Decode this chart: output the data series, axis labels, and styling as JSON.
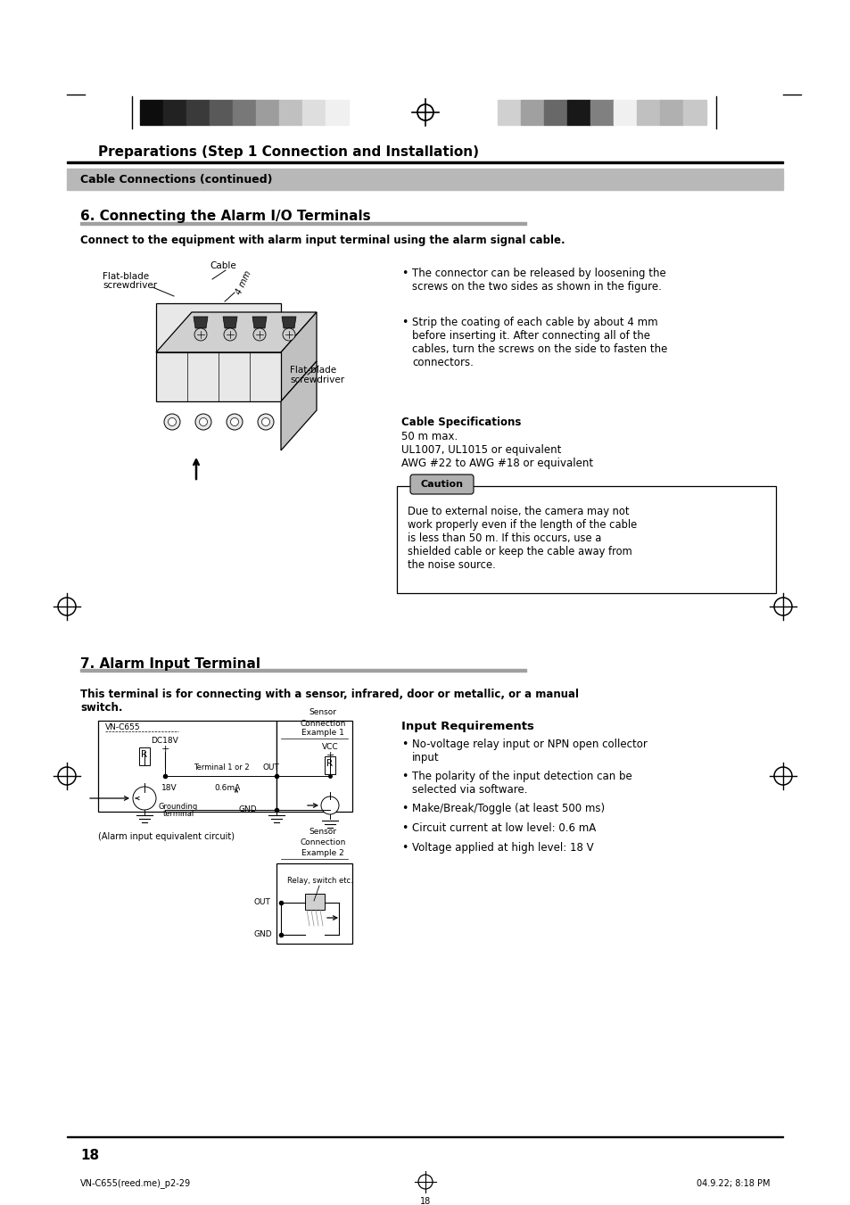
{
  "page_title": "Preparations (Step 1 Connection and Installation)",
  "subtitle_bar": "Cable Connections (continued)",
  "section6_title": "6. Connecting the Alarm I/O Terminals",
  "section6_intro": "Connect to the equipment with alarm input terminal using the alarm signal cable.",
  "section6_bullet1": "The connector can be released by loosening the\nscrews on the two sides as shown in the figure.",
  "section6_bullet2": "Strip the coating of each cable by about 4 mm\nbefore inserting it. After connecting all of the\ncables, turn the screws on the side to fasten the\nconnectors.",
  "cable_spec_title": "Cable Specifications",
  "cable_spec_line1": "50 m max.",
  "cable_spec_line2": "UL1007, UL1015 or equivalent",
  "cable_spec_line3": "AWG #22 to AWG #18 or equivalent",
  "caution_title": "Caution",
  "caution_text": "Due to external noise, the camera may not\nwork properly even if the length of the cable\nis less than 50 m. If this occurs, use a\nshielded cable or keep the cable away from\nthe noise source.",
  "section7_title": "7. Alarm Input Terminal",
  "section7_intro": "This terminal is for connecting with a sensor, infrared, door or metallic, or a manual\nswitch.",
  "input_req_title": "Input Requirements",
  "input_req_b1": "No-voltage relay input or NPN open collector\ninput",
  "input_req_b2": "The polarity of the input detection can be\nselected via software.",
  "input_req_b3": "Make/Break/Toggle (at least 500 ms)",
  "input_req_b4": "Circuit current at low level: 0.6 mA",
  "input_req_b5": "Voltage applied at high level: 18 V",
  "alarm_circuit_label": "(Alarm input equivalent circuit)",
  "page_number": "18",
  "footer_left": "VN-C655(reed.me)_p2-29",
  "footer_center_num": "18",
  "footer_right": "04.9.22; 8:18 PM",
  "bg_color": "#ffffff",
  "bar_color_dark": "#888888",
  "bar_color_mid": "#b0b0b0",
  "section_underline_color": "#aaaaaa",
  "caution_box_color": "#aaaaaa"
}
